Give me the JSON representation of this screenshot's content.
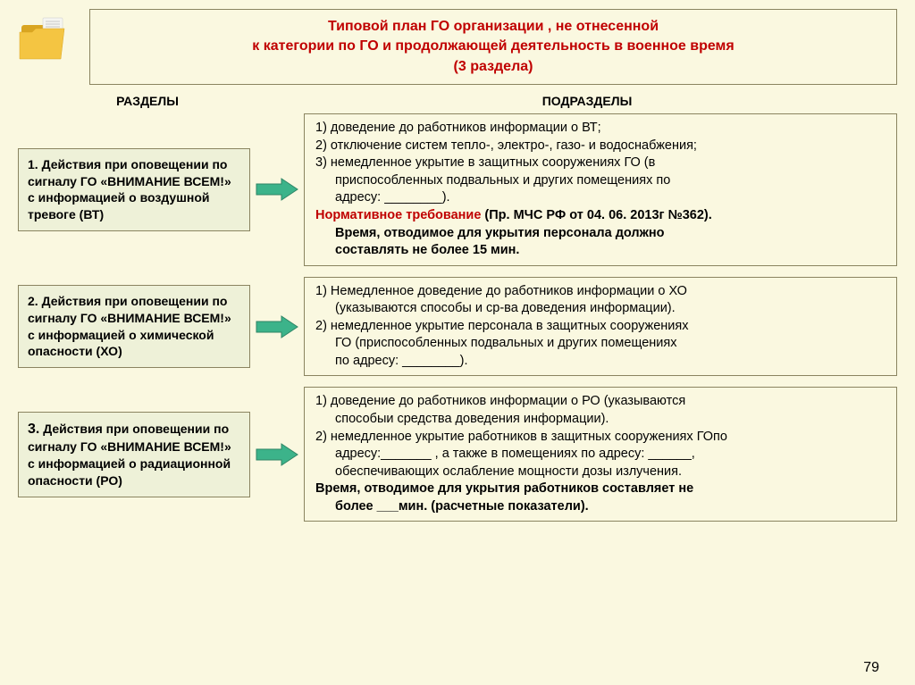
{
  "pageNumber": "79",
  "header": {
    "line1": "Типовой план ГО организации , не отнесенной",
    "line2": "к категории по ГО и   продолжающей     деятельность в военное время",
    "line3": "(3 раздела)"
  },
  "columnHeaders": {
    "left": "РАЗДЕЛЫ",
    "right": "ПОДРАЗДЕЛЫ"
  },
  "colors": {
    "background": "#faf8e0",
    "leftBoxBg": "#eef1d8",
    "border": "#8a8460",
    "red": "#c00000",
    "arrowFill": "#3cb38a",
    "arrowStroke": "#2e8565",
    "folderFront": "#f4c542",
    "folderBack": "#d9a521",
    "paper": "#f5f5f0"
  },
  "sections": [
    {
      "left": "1. Действия при оповещении по сигналу ГО «ВНИМАНИЕ ВСЕМ!» с информацией о воздушной тревоге (ВТ)",
      "right": [
        {
          "t": "1)  доведение до работников информации о ВТ;",
          "cls": ""
        },
        {
          "t": "2)  отключение систем тепло-, электро-, газо- и водоснабжения;",
          "cls": ""
        },
        {
          "t": "3) немедленное укрытие в защитных сооружениях ГО (в",
          "cls": ""
        },
        {
          "t": "приспособленных подвальных и других  помещениях по",
          "cls": "indent"
        },
        {
          "t": "адресу: ________).",
          "cls": "indent"
        },
        {
          "t": "Нормативное требование  (Пр. МЧС РФ от 04. 06. 2013г №362).",
          "cls": "",
          "redPrefix": "Нормативное требование"
        },
        {
          "t": "Время, отводимое для укрытия персонала должно",
          "cls": "indent bold"
        },
        {
          "t": "составлять не более 15 мин.",
          "cls": "indent bold"
        }
      ]
    },
    {
      "left": "2. Действия при оповещении по сигналу ГО «ВНИМАНИЕ ВСЕМ!» с информацией о химической опасности (ХО)",
      "right": [
        {
          "t": "1) Немедленное доведение до работников информации о ХО",
          "cls": ""
        },
        {
          "t": "(указываются способы и ср-ва доведения информации).",
          "cls": "indent"
        },
        {
          "t": "2) немедленное укрытие персонала в защитных сооружениях",
          "cls": ""
        },
        {
          "t": "ГО (приспособленных подвальных и других  помещениях",
          "cls": "indent"
        },
        {
          "t": "по адресу: ________).",
          "cls": "indent"
        }
      ]
    },
    {
      "left": "",
      "leftNum": "3.",
      "leftRest": " Действия при оповещении по сигналу ГО «ВНИМАНИЕ ВСЕМ!» с информацией о радиационной опасности (РО)",
      "right": [
        {
          "t": "1) доведение до работников информации о РО (указываются",
          "cls": ""
        },
        {
          "t": "способыи средства доведения информации).",
          "cls": "indent"
        },
        {
          "t": "2) немедленное укрытие работников в защитных сооружениях ГОпо",
          "cls": ""
        },
        {
          "t": "адресу:_______ , а также в помещениях по адресу: ______,",
          "cls": "indent"
        },
        {
          "t": "обеспечивающих ослабление мощности дозы излучения.",
          "cls": "indent"
        },
        {
          "t": "Время, отводимое для укрытия работников составляет не",
          "cls": "bold"
        },
        {
          "t": "более ___мин. (расчетные показатели).",
          "cls": "indent bold"
        }
      ]
    }
  ]
}
